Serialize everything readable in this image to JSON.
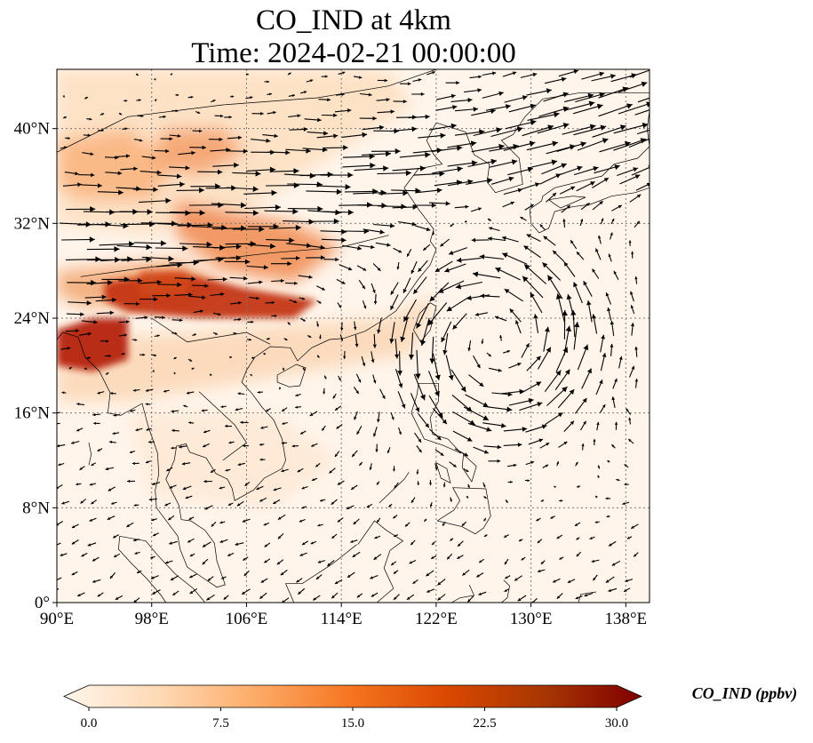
{
  "title": {
    "line1": "CO_IND at 4km",
    "line2": "Time: 2024-02-21 00:00:00"
  },
  "map": {
    "lon_range": [
      90,
      140
    ],
    "lat_range": [
      0,
      45
    ],
    "lon_ticks": [
      {
        "value": 90,
        "label": "90°E"
      },
      {
        "value": 98,
        "label": "98°E"
      },
      {
        "value": 106,
        "label": "106°E"
      },
      {
        "value": 114,
        "label": "114°E"
      },
      {
        "value": 122,
        "label": "122°E"
      },
      {
        "value": 130,
        "label": "130°E"
      },
      {
        "value": 138,
        "label": "138°E"
      }
    ],
    "lat_ticks": [
      {
        "value": 0,
        "label": "0°"
      },
      {
        "value": 8,
        "label": "8°N"
      },
      {
        "value": 16,
        "label": "16°N"
      },
      {
        "value": 24,
        "label": "24°N"
      },
      {
        "value": 32,
        "label": "32°N"
      },
      {
        "value": 40,
        "label": "40°N"
      }
    ],
    "gridlines": true,
    "field_variable": "CO_IND",
    "vectors": "wind",
    "cyclone_center": {
      "lon": 127,
      "lat": 22
    }
  },
  "colorbar": {
    "label": "CO_IND (ppbv)",
    "ticks": [
      "0.0",
      "7.5",
      "15.0",
      "22.5",
      "30.0"
    ],
    "min": 0,
    "max": 30,
    "extend": "both",
    "colors": [
      "#fff5eb",
      "#fdd9b4",
      "#fdab67",
      "#f5741f",
      "#d94801",
      "#a63603",
      "#7f0000"
    ]
  }
}
